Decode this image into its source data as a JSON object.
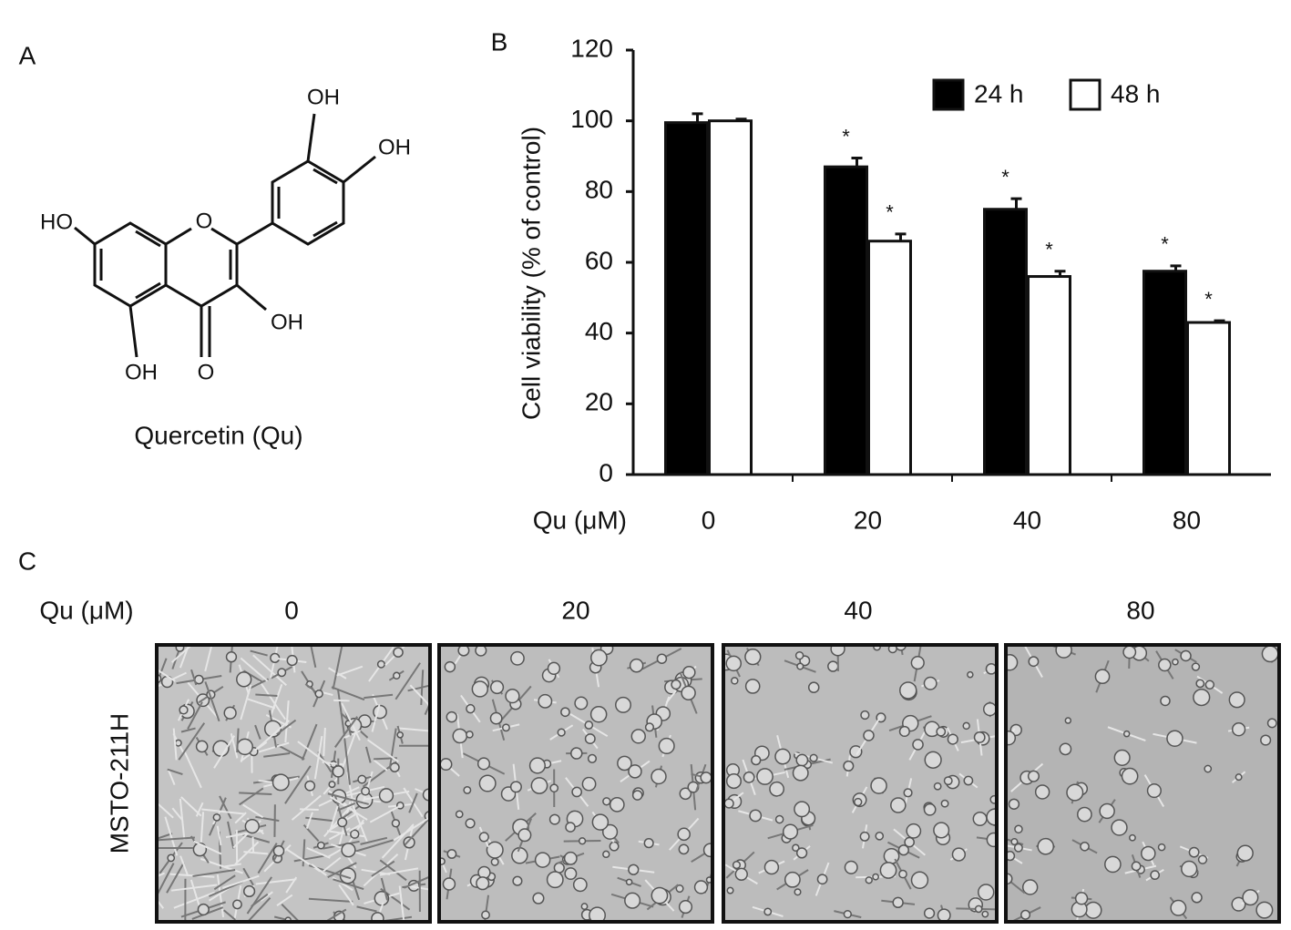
{
  "panel_a": {
    "label": "A",
    "atoms": [
      "OH",
      "OH",
      "HO",
      "O",
      "OH",
      "OH",
      "O"
    ],
    "caption": "Quercetin (Qu)"
  },
  "panel_b": {
    "label": "B"
  },
  "chart_data": {
    "type": "bar",
    "ylabel": "Cell viability (% of control)",
    "xlabel": "Qu (μM)",
    "categories": [
      "0",
      "20",
      "40",
      "80"
    ],
    "series": [
      {
        "name": "24 h",
        "color": "#000000",
        "values": [
          99.5,
          87,
          75,
          57.5
        ],
        "errors": [
          2.5,
          2.5,
          3,
          1.5
        ],
        "significance": [
          null,
          "*",
          "*",
          "*"
        ]
      },
      {
        "name": "48 h",
        "color": "#ffffff",
        "values": [
          100,
          66,
          56,
          43
        ],
        "errors": [
          0.5,
          2,
          1.5,
          0.5
        ],
        "significance": [
          null,
          "*",
          "*",
          "*"
        ]
      }
    ],
    "ylim": [
      0,
      120
    ],
    "yticks": [
      0,
      20,
      40,
      60,
      80,
      100,
      120
    ],
    "legend": "top-right",
    "grid": false
  },
  "panel_c": {
    "label": "C",
    "row_header": "Qu (μM)",
    "columns": [
      "0",
      "20",
      "40",
      "80"
    ],
    "row_label": "MSTO-211H"
  }
}
